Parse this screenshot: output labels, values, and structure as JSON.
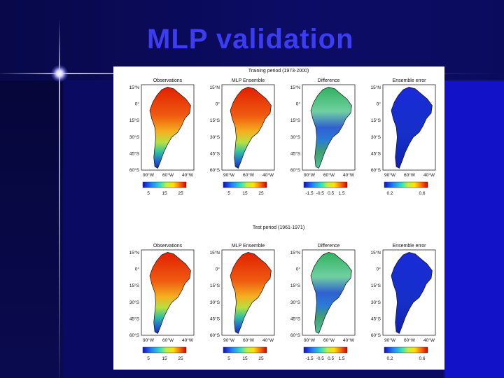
{
  "slide": {
    "title": "MLP validation"
  },
  "figure": {
    "rows": [
      {
        "period_label": "Training period (1973-2000)",
        "panels": [
          {
            "name": "Observations",
            "kind": "obs",
            "lat_labels": [
              "15°N",
              "0°",
              "15°S",
              "30°S",
              "45°S",
              "60°S"
            ],
            "lon_labels": [
              "90°W",
              "60°W",
              "40°W"
            ],
            "colorbar_ticks": [
              "5",
              "15",
              "25"
            ]
          },
          {
            "name": "MLP Ensemble",
            "kind": "obs",
            "lat_labels": [
              "15°N",
              "0°",
              "15°S",
              "30°S",
              "45°S",
              "60°S"
            ],
            "lon_labels": [
              "90°W",
              "60°W",
              "40°W"
            ],
            "colorbar_ticks": [
              "5",
              "15",
              "25"
            ]
          },
          {
            "name": "Difference",
            "kind": "diff",
            "lat_labels": [
              "15°N",
              "0°",
              "15°S",
              "30°S",
              "45°S",
              "60°S"
            ],
            "lon_labels": [
              "90°W",
              "60°W",
              "40°W"
            ],
            "colorbar_ticks": [
              "-1.5",
              "-0.5",
              "0.5",
              "1.5"
            ]
          },
          {
            "name": "Ensemble error",
            "kind": "err",
            "lat_labels": [
              "15°N",
              "0°",
              "15°S",
              "30°S",
              "45°S",
              "60°S"
            ],
            "lon_labels": [
              "90°W",
              "60°W",
              "40°W"
            ],
            "colorbar_ticks": [
              "0.2",
              "0.6"
            ]
          }
        ]
      },
      {
        "period_label": "Test period (1961-1971)",
        "panels": [
          {
            "name": "Observations",
            "kind": "obs",
            "lat_labels": [
              "15°N",
              "0°",
              "15°S",
              "30°S",
              "45°S",
              "60°S"
            ],
            "lon_labels": [
              "90°W",
              "60°W",
              "40°W"
            ],
            "colorbar_ticks": [
              "5",
              "15",
              "25"
            ]
          },
          {
            "name": "MLP Ensemble",
            "kind": "obs",
            "lat_labels": [
              "15°N",
              "0°",
              "15°S",
              "30°S",
              "45°S",
              "60°S"
            ],
            "lon_labels": [
              "90°W",
              "60°W",
              "40°W"
            ],
            "colorbar_ticks": [
              "5",
              "15",
              "25"
            ]
          },
          {
            "name": "Difference",
            "kind": "diff",
            "lat_labels": [
              "15°N",
              "0°",
              "15°S",
              "30°S",
              "45°S",
              "60°S"
            ],
            "lon_labels": [
              "90°W",
              "60°W",
              "40°W"
            ],
            "colorbar_ticks": [
              "-1.5",
              "-0.5",
              "0.5",
              "1.5"
            ]
          },
          {
            "name": "Ensemble error",
            "kind": "err",
            "lat_labels": [
              "15°N",
              "0°",
              "15°S",
              "30°S",
              "45°S",
              "60°S"
            ],
            "lon_labels": [
              "90°W",
              "60°W",
              "40°W"
            ],
            "colorbar_ticks": [
              "0.2",
              "0.6"
            ]
          }
        ]
      }
    ]
  }
}
